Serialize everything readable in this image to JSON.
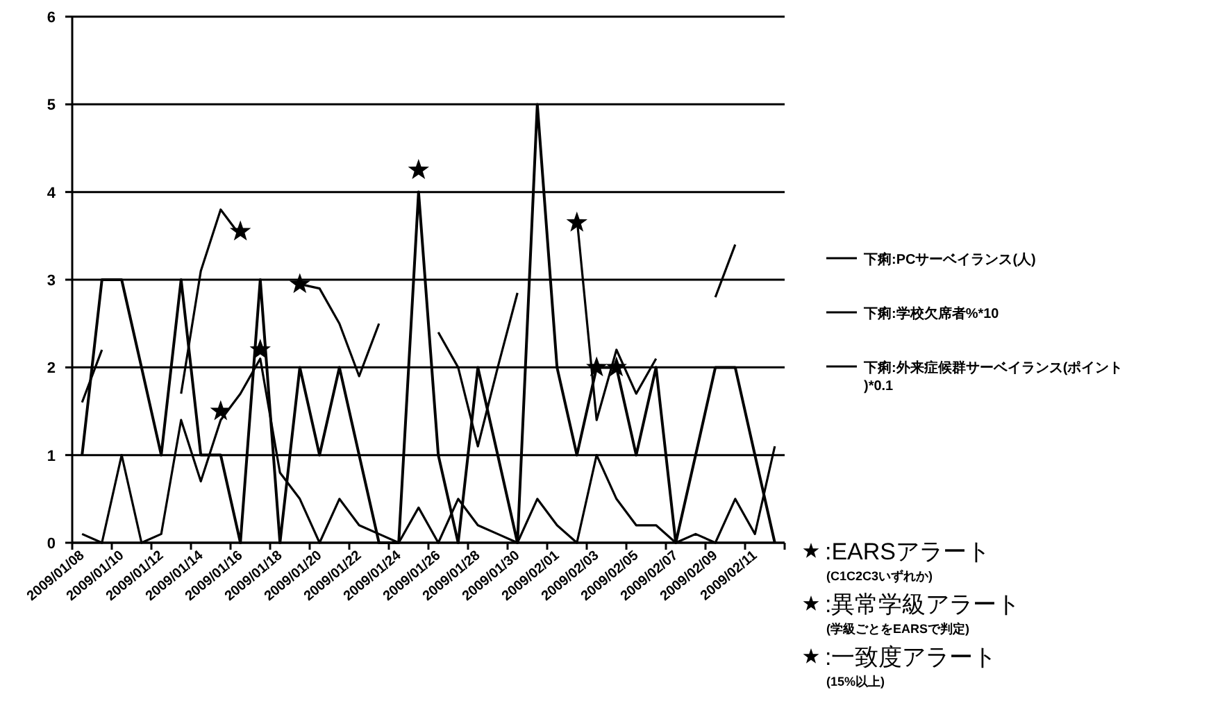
{
  "chart_data": {
    "type": "line",
    "categories": [
      "2009/01/08",
      null,
      "2009/01/10",
      null,
      "2009/01/12",
      null,
      "2009/01/14",
      null,
      "2009/01/16",
      null,
      "2009/01/18",
      null,
      "2009/01/20",
      null,
      "2009/01/22",
      null,
      "2009/01/24",
      null,
      "2009/01/26",
      null,
      "2009/01/28",
      null,
      "2009/01/30",
      null,
      "2009/02/01",
      null,
      "2009/02/03",
      null,
      "2009/02/05",
      null,
      "2009/02/07",
      null,
      "2009/02/09",
      null,
      "2009/02/11",
      null
    ],
    "ylim": [
      0,
      6
    ],
    "yticks": [
      0,
      1,
      2,
      3,
      4,
      5,
      6
    ],
    "grid": "y",
    "legend": "right",
    "line_style": "solid",
    "series": [
      {
        "name": "下痢:PCサーベイランス(人)",
        "color": "#000000",
        "values": [
          1,
          3,
          3,
          2,
          1,
          3,
          1,
          1,
          0,
          3,
          0,
          2,
          1,
          2,
          1,
          0,
          0,
          4,
          1,
          0,
          2,
          1,
          0,
          5,
          2,
          1,
          2,
          2,
          1,
          2,
          0,
          1,
          2,
          2,
          1,
          0
        ]
      },
      {
        "name": "下痢:学校欠席者%*10",
        "color": "#000000",
        "values": [
          1.6,
          2.2,
          null,
          null,
          null,
          1.7,
          3.1,
          3.8,
          3.5,
          null,
          null,
          2.95,
          2.9,
          2.5,
          1.9,
          2.5,
          null,
          null,
          2.4,
          2.0,
          1.1,
          2.0,
          2.85,
          null,
          null,
          3.7,
          1.4,
          2.2,
          1.7,
          2.1,
          null,
          null,
          2.8,
          3.4,
          null,
          null
        ]
      },
      {
        "name": "下痢:外来症候群サーベイランス(ポイント)*0.1",
        "color": "#000000",
        "values": [
          0.1,
          0,
          1.0,
          0,
          0.1,
          1.4,
          0.7,
          1.4,
          1.7,
          2.1,
          0.8,
          0.5,
          0,
          0.5,
          0.2,
          0.1,
          0,
          0.4,
          0,
          0.5,
          0.2,
          0.1,
          0,
          0.5,
          0.2,
          0,
          1.0,
          0.5,
          0.2,
          0.2,
          0,
          0.1,
          0,
          0.5,
          0.1,
          1.1
        ]
      },
      {
        "name": ":EARSアラート\n(C1C2C3いずれか)",
        "type": "scatter",
        "marker": "star",
        "color": "#000000",
        "values": [
          null,
          null,
          null,
          null,
          null,
          null,
          null,
          null,
          3.55,
          null,
          null,
          2.95,
          null,
          null,
          null,
          null,
          null,
          null,
          null,
          null,
          null,
          null,
          null,
          null,
          null,
          3.65,
          null,
          null,
          null,
          null,
          null,
          null,
          null,
          null,
          null,
          null
        ]
      },
      {
        "name": ":異常学級アラート\n(学級ごとをEARSで判定)",
        "type": "scatter",
        "marker": "star",
        "color": "#000000",
        "values": [
          null,
          null,
          null,
          null,
          null,
          null,
          null,
          1.5,
          null,
          null,
          null,
          null,
          null,
          null,
          null,
          null,
          null,
          null,
          null,
          null,
          null,
          null,
          null,
          null,
          null,
          null,
          2.0,
          2.0,
          null,
          null,
          null,
          null,
          null,
          null,
          null,
          null
        ]
      },
      {
        "name": ":一致度アラート\n(15%以上)",
        "type": "scatter",
        "marker": "star",
        "color": "#000000",
        "values": [
          null,
          null,
          null,
          null,
          null,
          null,
          null,
          null,
          null,
          2.2,
          null,
          null,
          null,
          null,
          null,
          null,
          null,
          4.25,
          null,
          null,
          null,
          null,
          null,
          null,
          null,
          null,
          null,
          null,
          null,
          null,
          null,
          null,
          null,
          null,
          null,
          null
        ]
      }
    ]
  }
}
